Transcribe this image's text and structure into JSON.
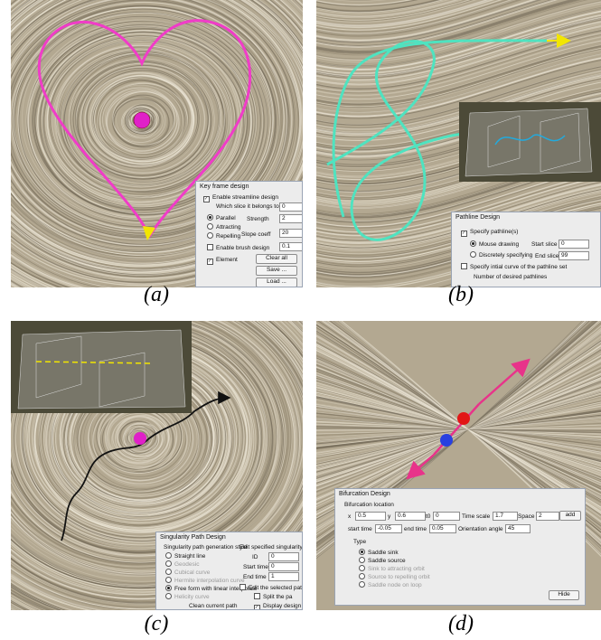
{
  "panels": [
    {
      "caption": "(a)",
      "dialog_title": "Key frame design",
      "labels": [
        "Enable streamline design",
        "Which slice it belongs to",
        "0",
        "Parallel",
        "Strength",
        "2",
        "Attracting",
        "Repelling",
        "Slope coeff",
        "20",
        "Enable brush design",
        "0.1",
        "Element",
        "Clear all",
        "Save ...",
        "Load ..."
      ]
    },
    {
      "caption": "(b)",
      "dialog_title": "Pathline Design",
      "labels": [
        "Specify pathline(s)",
        "Mouse drawing",
        "Start slice",
        "0",
        "Discretely specifying",
        "End slice",
        "99",
        "Specify intial curve  of the pathline set",
        "Number of desired pathlines"
      ]
    },
    {
      "caption": "(c)",
      "dialog_title": "Singularity Path Design",
      "labels": [
        "Singularity path generation style",
        "Straight line",
        "Geodesic",
        "Cubical curve",
        "Hermite interpolation curve",
        "Free form with linear interpolate",
        "Helicity curve",
        "Clean current path",
        "Edit specified singularity",
        "ID",
        "0",
        "Start time",
        "0",
        "End time",
        "1",
        "Edit the selected path",
        "Split the pa",
        "Display design curve"
      ]
    },
    {
      "caption": "(d)",
      "dialog_title": "Bifurcation Design",
      "labels": [
        "Bifurcation location",
        "x",
        "0.5",
        "y",
        "0.6",
        "t0",
        "0",
        "Time scale",
        "1.7",
        "Space scale",
        "2",
        "add",
        "start time",
        "-0.05",
        "end time",
        "0.05",
        "Orientation angle",
        "45",
        "Type",
        "Saddle sink",
        "Saddle source",
        "Sink to attracting orbit",
        "Source to repelling orbit",
        "Saddle node on loop",
        "Hide"
      ]
    }
  ]
}
